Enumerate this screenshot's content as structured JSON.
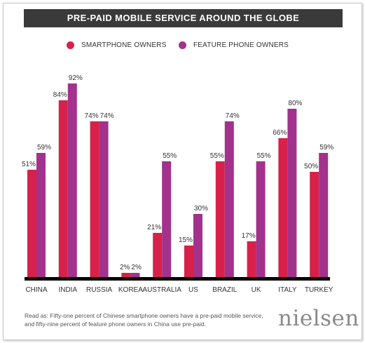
{
  "chart_data": {
    "type": "bar",
    "title": "PRE-PAID MOBILE SERVICE AROUND THE GLOBE",
    "categories": [
      "CHINA",
      "INDIA",
      "RUSSIA",
      "KOREA",
      "AUSTRALIA",
      "US",
      "BRAZIL",
      "UK",
      "ITALY",
      "TURKEY"
    ],
    "series": [
      {
        "name": "SMARTPHONE OWNERS",
        "color": "#d7214a",
        "values": [
          51,
          84,
          74,
          2,
          21,
          15,
          55,
          17,
          66,
          50
        ],
        "labels": [
          "51%",
          "84%",
          "74%",
          "2%",
          "21%",
          "15%",
          "55%",
          "17%",
          "66%",
          "50%"
        ]
      },
      {
        "name": "FEATURE PHONE OWNERS",
        "color": "#a2328c",
        "values": [
          59,
          92,
          74,
          2,
          55,
          30,
          74,
          55,
          80,
          59
        ],
        "labels": [
          "59%",
          "92%",
          "74%",
          "2%",
          "55%",
          "30%",
          "74%",
          "55%",
          "80%",
          "59%"
        ]
      }
    ],
    "ylim": [
      0,
      100
    ],
    "grid": false,
    "legend_position": "top"
  },
  "footnote": {
    "line1": "Read as: Fifty-one percent of Chinese smartphone owners have a pre-paid mobile service,",
    "line2": "and fifty-nine percent of feature phone owners in China use pre-paid."
  },
  "logo": "nielsen"
}
